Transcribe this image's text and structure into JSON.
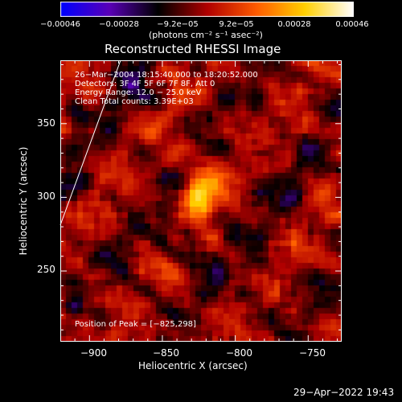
{
  "colorbar": {
    "ticks": [
      "−0.00046",
      "−0.00028",
      "−9.2e−05",
      "9.2e−05",
      "0.00028",
      "0.00046"
    ],
    "tick_values": [
      -0.00046,
      -0.00028,
      -9.2e-05,
      9.2e-05,
      0.00028,
      0.00046
    ],
    "range": [
      -0.00046,
      0.00046
    ],
    "unit_label": "(photons cm⁻² s⁻¹ asec⁻²)"
  },
  "title": "Reconstructed RHESSI Image",
  "annotations": {
    "line1": "26−Mar−2004 18:15:40.000 to 18:20:52.000",
    "line2": "Detectors: 3F 4F 5F 6F 7F 8F, Att 0",
    "line3": "Energy Range: 12.0 − 25.0 keV",
    "line4": "Clean      Total counts: 3.39E+03",
    "peak": "Position of Peak = [−825,298]"
  },
  "footer": {
    "timestamp": "29−Apr−2022 19:43"
  },
  "chart_data": {
    "type": "heatmap",
    "title": "Reconstructed RHESSI Image",
    "xlabel": "Heliocentric X (arcsec)",
    "ylabel": "Heliocentric Y (arcsec)",
    "xlim": [
      -920,
      -727
    ],
    "ylim": [
      202,
      393
    ],
    "x_ticks": [
      -900,
      -850,
      -800,
      -750
    ],
    "x_tick_labels": [
      "−900",
      "−850",
      "−800",
      "−750"
    ],
    "y_ticks": [
      250,
      300,
      350
    ],
    "y_tick_labels": [
      "250",
      "300",
      "350"
    ],
    "peak": {
      "x": -825,
      "y": 298
    },
    "colormap": [
      "#0000ff",
      "#5a00b8",
      "#000000",
      "#b00000",
      "#ff5a00",
      "#ffd000",
      "#ffffff"
    ]
  }
}
